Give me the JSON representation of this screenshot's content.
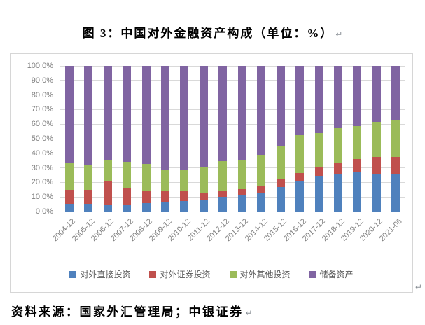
{
  "title": {
    "text": "图 3：中国对外金融资产构成（单位：%）",
    "paragraph_mark": "↵"
  },
  "source_note": {
    "text": "资料来源：国家外汇管理局；中银证券",
    "paragraph_mark": "↵"
  },
  "chart_paragraph_mark": "↵",
  "colors": {
    "direct_investment": "#4F81BD",
    "portfolio_investment": "#C0504D",
    "other_investment": "#9BBB59",
    "reserve_assets": "#8064A2",
    "gridline": "#d9d9d9",
    "axis_text": "#7f7f7f",
    "legend_text": "#595959"
  },
  "chart_data": {
    "type": "bar",
    "subtype": "stacked-100-percent",
    "grid": true,
    "legend_position": "bottom",
    "categories": [
      "2004-12",
      "2005-12",
      "2006-12",
      "2007-12",
      "2008-12",
      "2009-12",
      "2010-12",
      "2011-12",
      "2012-12",
      "2013-12",
      "2014-12",
      "2015-12",
      "2016-12",
      "2017-12",
      "2018-12",
      "2019-12",
      "2020-12",
      "2021-06"
    ],
    "series": [
      {
        "name": "对外直接投资",
        "color": "#4F81BD",
        "values": [
          5.5,
          5.5,
          5.0,
          5.0,
          6.0,
          6.5,
          7.0,
          8.0,
          10.0,
          11.0,
          13.0,
          17.0,
          21.0,
          24.5,
          26.0,
          27.0,
          26.0,
          25.5
        ]
      },
      {
        "name": "对外证券投资",
        "color": "#C0504D",
        "values": [
          9.5,
          9.5,
          15.5,
          11.5,
          8.5,
          7.5,
          7.0,
          4.5,
          4.5,
          4.5,
          4.5,
          5.0,
          5.5,
          6.5,
          7.0,
          9.0,
          11.5,
          12.0
        ]
      },
      {
        "name": "对外其他投资",
        "color": "#9BBB59",
        "values": [
          18.5,
          17.0,
          14.5,
          17.5,
          18.0,
          14.5,
          15.0,
          18.5,
          20.0,
          19.5,
          21.0,
          22.5,
          26.0,
          23.0,
          24.0,
          22.5,
          24.0,
          25.5
        ]
      },
      {
        "name": "储备资产",
        "color": "#8064A2",
        "values": [
          66.5,
          68.0,
          65.0,
          66.0,
          67.5,
          71.5,
          71.0,
          69.0,
          65.5,
          65.0,
          61.5,
          55.5,
          47.5,
          46.0,
          43.0,
          41.5,
          38.5,
          37.0
        ]
      }
    ],
    "y_axis": {
      "min": 0,
      "max": 100,
      "step": 10,
      "unit": "%",
      "tick_labels": [
        "0.0%",
        "10.0%",
        "20.0%",
        "30.0%",
        "40.0%",
        "50.0%",
        "60.0%",
        "70.0%",
        "80.0%",
        "90.0%",
        "100.0%"
      ]
    }
  }
}
